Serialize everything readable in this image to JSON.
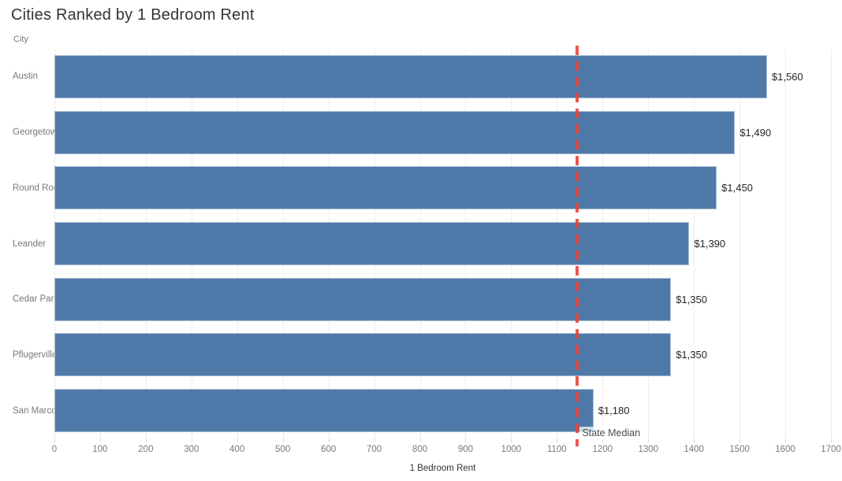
{
  "title": "Cities Ranked by 1 Bedroom Rent",
  "chart_data": {
    "type": "bar",
    "orientation": "horizontal",
    "title": "Cities Ranked by 1 Bedroom Rent",
    "categories": [
      "Austin",
      "Georgetown",
      "Round Rock",
      "Leander",
      "Cedar Park",
      "Pflugerville",
      "San Marcos"
    ],
    "values": [
      1560,
      1490,
      1450,
      1390,
      1350,
      1350,
      1180
    ],
    "value_labels": [
      "$1,560",
      "$1,490",
      "$1,450",
      "$1,390",
      "$1,350",
      "$1,350",
      "$1,180"
    ],
    "xlabel": "1 Bedroom Rent",
    "ylabel": "City",
    "xlim": [
      0,
      1700
    ],
    "x_tick_step": 100,
    "x_ticks": [
      0,
      100,
      200,
      300,
      400,
      500,
      600,
      700,
      800,
      900,
      1000,
      1100,
      1200,
      1300,
      1400,
      1500,
      1600,
      1700
    ],
    "grid": true,
    "legend": false,
    "reference_line": {
      "label": "State Median",
      "value": 1145,
      "orientation": "vertical",
      "style": "dashed"
    }
  },
  "colors": {
    "bar": "#4f79a8",
    "bar_border": "#aec3d9",
    "grid": "#ededed",
    "tick_mark": "#d7d7d7",
    "reference": "#e8463c",
    "title_text": "#333333",
    "label_text": "#787878",
    "value_text": "#262626",
    "axis_title_text": "#333333",
    "ref_label_text": "#4d4d4d"
  }
}
